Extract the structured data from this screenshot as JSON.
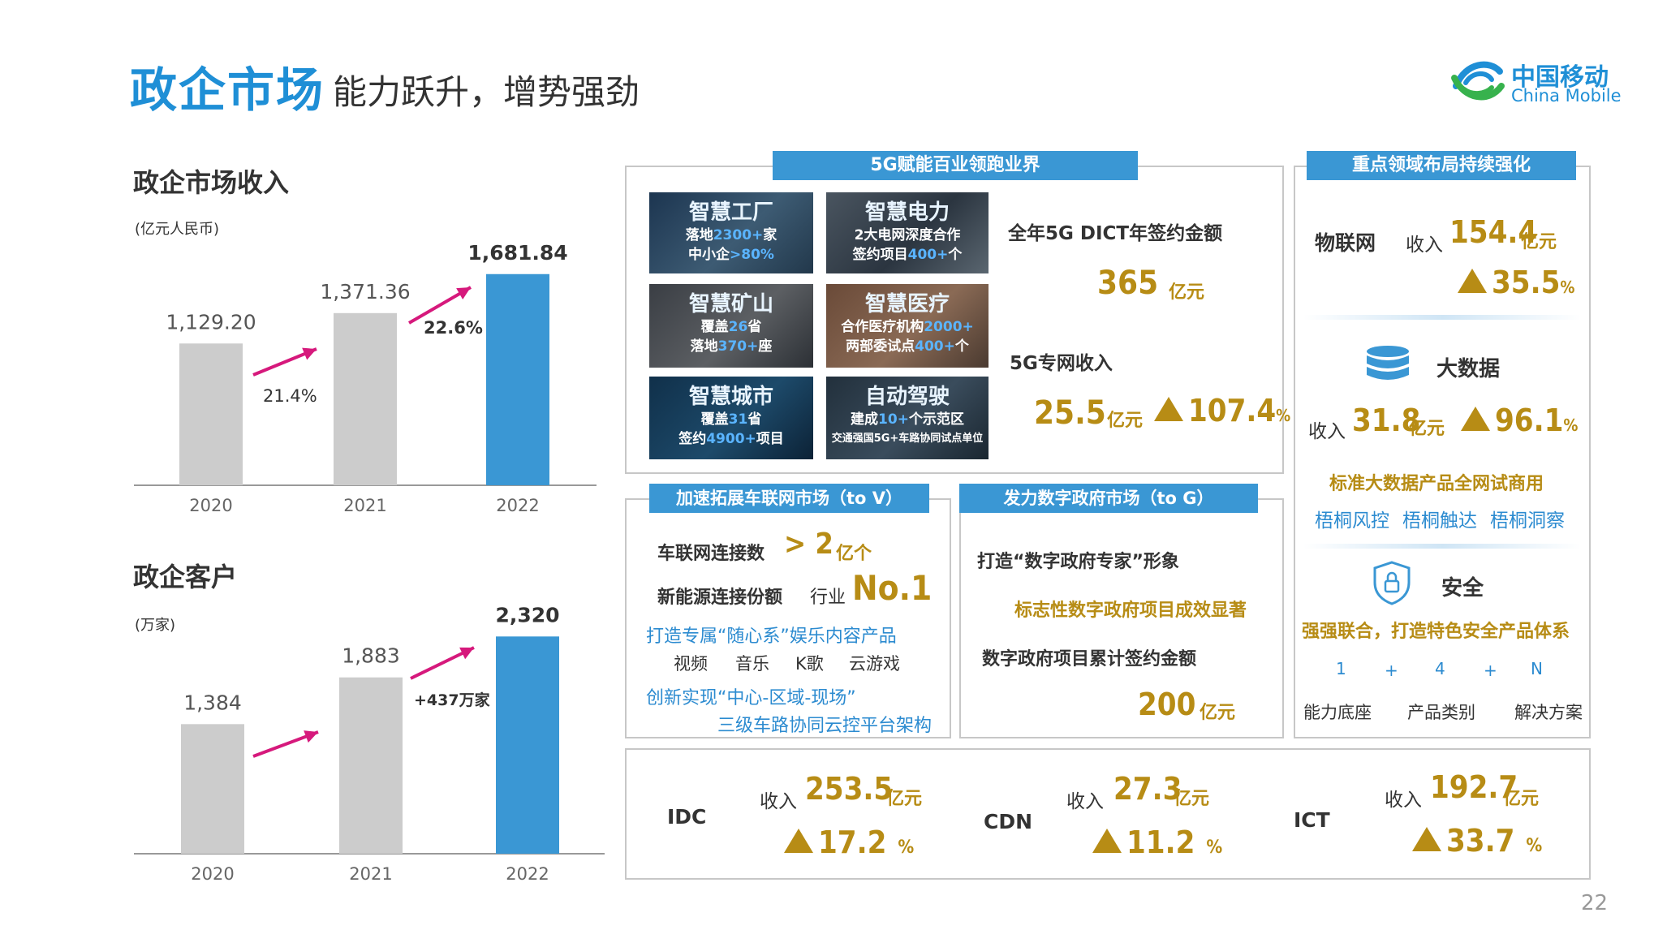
{
  "header": {
    "title": "政企市场",
    "subtitle": "能力跃升，增势强劲",
    "logo_cn": "中国移动",
    "logo_en": "China Mobile",
    "page_number": "22"
  },
  "revenue": {
    "heading": "政企市场收入",
    "unit": "(亿元人民币)",
    "growth_2021": "21.4%",
    "growth_2022": "22.6%"
  },
  "customers": {
    "heading": "政企客户",
    "unit": "(万家)",
    "growth_2022": "+437万家"
  },
  "chart_data": [
    {
      "type": "bar",
      "categories": [
        "2020",
        "2021",
        "2022"
      ],
      "values": [
        1129.2,
        1371.36,
        1681.84
      ],
      "value_labels": [
        "1,129.20",
        "1,371.36",
        "1,681.84"
      ],
      "title": "政企市场收入",
      "ylabel": "(亿元人民币)",
      "colors": [
        "#cccccc",
        "#cccccc",
        "#3a97d4"
      ],
      "ylim": [
        0,
        1900
      ]
    },
    {
      "type": "bar",
      "categories": [
        "2020",
        "2021",
        "2022"
      ],
      "values": [
        1384,
        1883,
        2320
      ],
      "value_labels": [
        "1,384",
        "1,883",
        "2,320"
      ],
      "title": "政企客户",
      "ylabel": "(万家)",
      "colors": [
        "#cccccc",
        "#cccccc",
        "#3a97d4"
      ],
      "ylim": [
        0,
        2600
      ]
    }
  ],
  "fiveg": {
    "tag": "5G赋能百业领跑业界",
    "tiles": [
      {
        "title": "智慧工厂",
        "l1a": "落地",
        "l1b": "2300+",
        "l1c": "家",
        "l2a": "中小企",
        "l2b": ">80%",
        "l2c": ""
      },
      {
        "title": "智慧电力",
        "l1a": "2大电网深度合作",
        "l1b": "",
        "l1c": "",
        "l2a": "签约项目",
        "l2b": "400+",
        "l2c": "个"
      },
      {
        "title": "智慧矿山",
        "l1a": "覆盖",
        "l1b": "26",
        "l1c": "省",
        "l2a": "落地",
        "l2b": "370+",
        "l2c": "座"
      },
      {
        "title": "智慧医疗",
        "l1a": "合作医疗机构",
        "l1b": "2000+",
        "l1c": "",
        "l2a": "两部委试点",
        "l2b": "400+",
        "l2c": "个"
      },
      {
        "title": "智慧城市",
        "l1a": "覆盖",
        "l1b": "31",
        "l1c": "省",
        "l2a": "签约",
        "l2b": "4900+",
        "l2c": "项目"
      },
      {
        "title": "自动驾驶",
        "l1a": "建成",
        "l1b": "10+",
        "l1c": "个示范区",
        "l2a": "交通强国5G+车路协同试点单位",
        "l2b": "",
        "l2c": ""
      }
    ],
    "dict_label": "全年5G DICT年签约金额",
    "dict_value": "365",
    "dict_unit": "亿元",
    "private_label": "5G专网收入",
    "private_value": "25.5",
    "private_unit": "亿元",
    "private_growth": "107.4",
    "private_growth_unit": "%"
  },
  "key_areas": {
    "tag": "重点领域布局持续强化",
    "iot_label": "物联网",
    "iot_rev_label": "收入",
    "iot_value": "154.4",
    "iot_unit": "亿元",
    "iot_growth": "35.5",
    "iot_growth_unit": "%",
    "bigdata_label": "大数据",
    "bigdata_rev_label": "收入",
    "bigdata_value": "31.8",
    "bigdata_unit": "亿元",
    "bigdata_growth": "96.1",
    "bigdata_growth_unit": "%",
    "bigdata_note": "标准大数据产品全网试商用",
    "products": [
      "梧桐风控",
      "梧桐触达",
      "梧桐洞察"
    ],
    "security_label": "安全",
    "security_note": "强强联合，打造特色安全产品体系",
    "formula": [
      "1",
      "+",
      "4",
      "+",
      "N"
    ],
    "formula_labels": [
      "能力底座",
      "产品类别",
      "解决方案"
    ]
  },
  "to_v": {
    "tag": "加速拓展车联网市场（to V）",
    "conn_label": "车联网连接数",
    "conn_value": "> 2",
    "conn_unit": "亿个",
    "nev_label": "新能源连接份额",
    "nev_mid": "行业",
    "nev_value": "No.1",
    "line1": "打造专属“随心系”娱乐内容产品",
    "items": [
      "视频",
      "音乐",
      "K歌",
      "云游戏"
    ],
    "line2": "创新实现“中心-区域-现场”",
    "line3": "三级车路协同云控平台架构"
  },
  "to_g": {
    "tag": "发力数字政府市场（to G）",
    "line1": "打造“数字政府专家”形象",
    "line2": "标志性数字政府项目成效显著",
    "line3": "数字政府项目累计签约金额",
    "value": "200",
    "unit": "亿元"
  },
  "bottom": [
    {
      "name": "IDC",
      "rev_label": "收入",
      "value": "253.5",
      "unit": "亿元",
      "growth": "17.2",
      "growth_unit": "%"
    },
    {
      "name": "CDN",
      "rev_label": "收入",
      "value": "27.3",
      "unit": "亿元",
      "growth": "11.2",
      "growth_unit": "%"
    },
    {
      "name": "ICT",
      "rev_label": "收入",
      "value": "192.7",
      "unit": "亿元",
      "growth": "33.7",
      "growth_unit": "%"
    }
  ],
  "colors": {
    "accent": "#1f8fd6",
    "bar_gray": "#cccccc",
    "bar_blue": "#3a97d4",
    "gold": "#b78c15",
    "arrow": "#d6197c"
  },
  "icons": [
    "china-mobile-logo-icon",
    "database-icon",
    "shield-lock-icon",
    "triangle-up-icon",
    "growth-arrow-icon"
  ]
}
